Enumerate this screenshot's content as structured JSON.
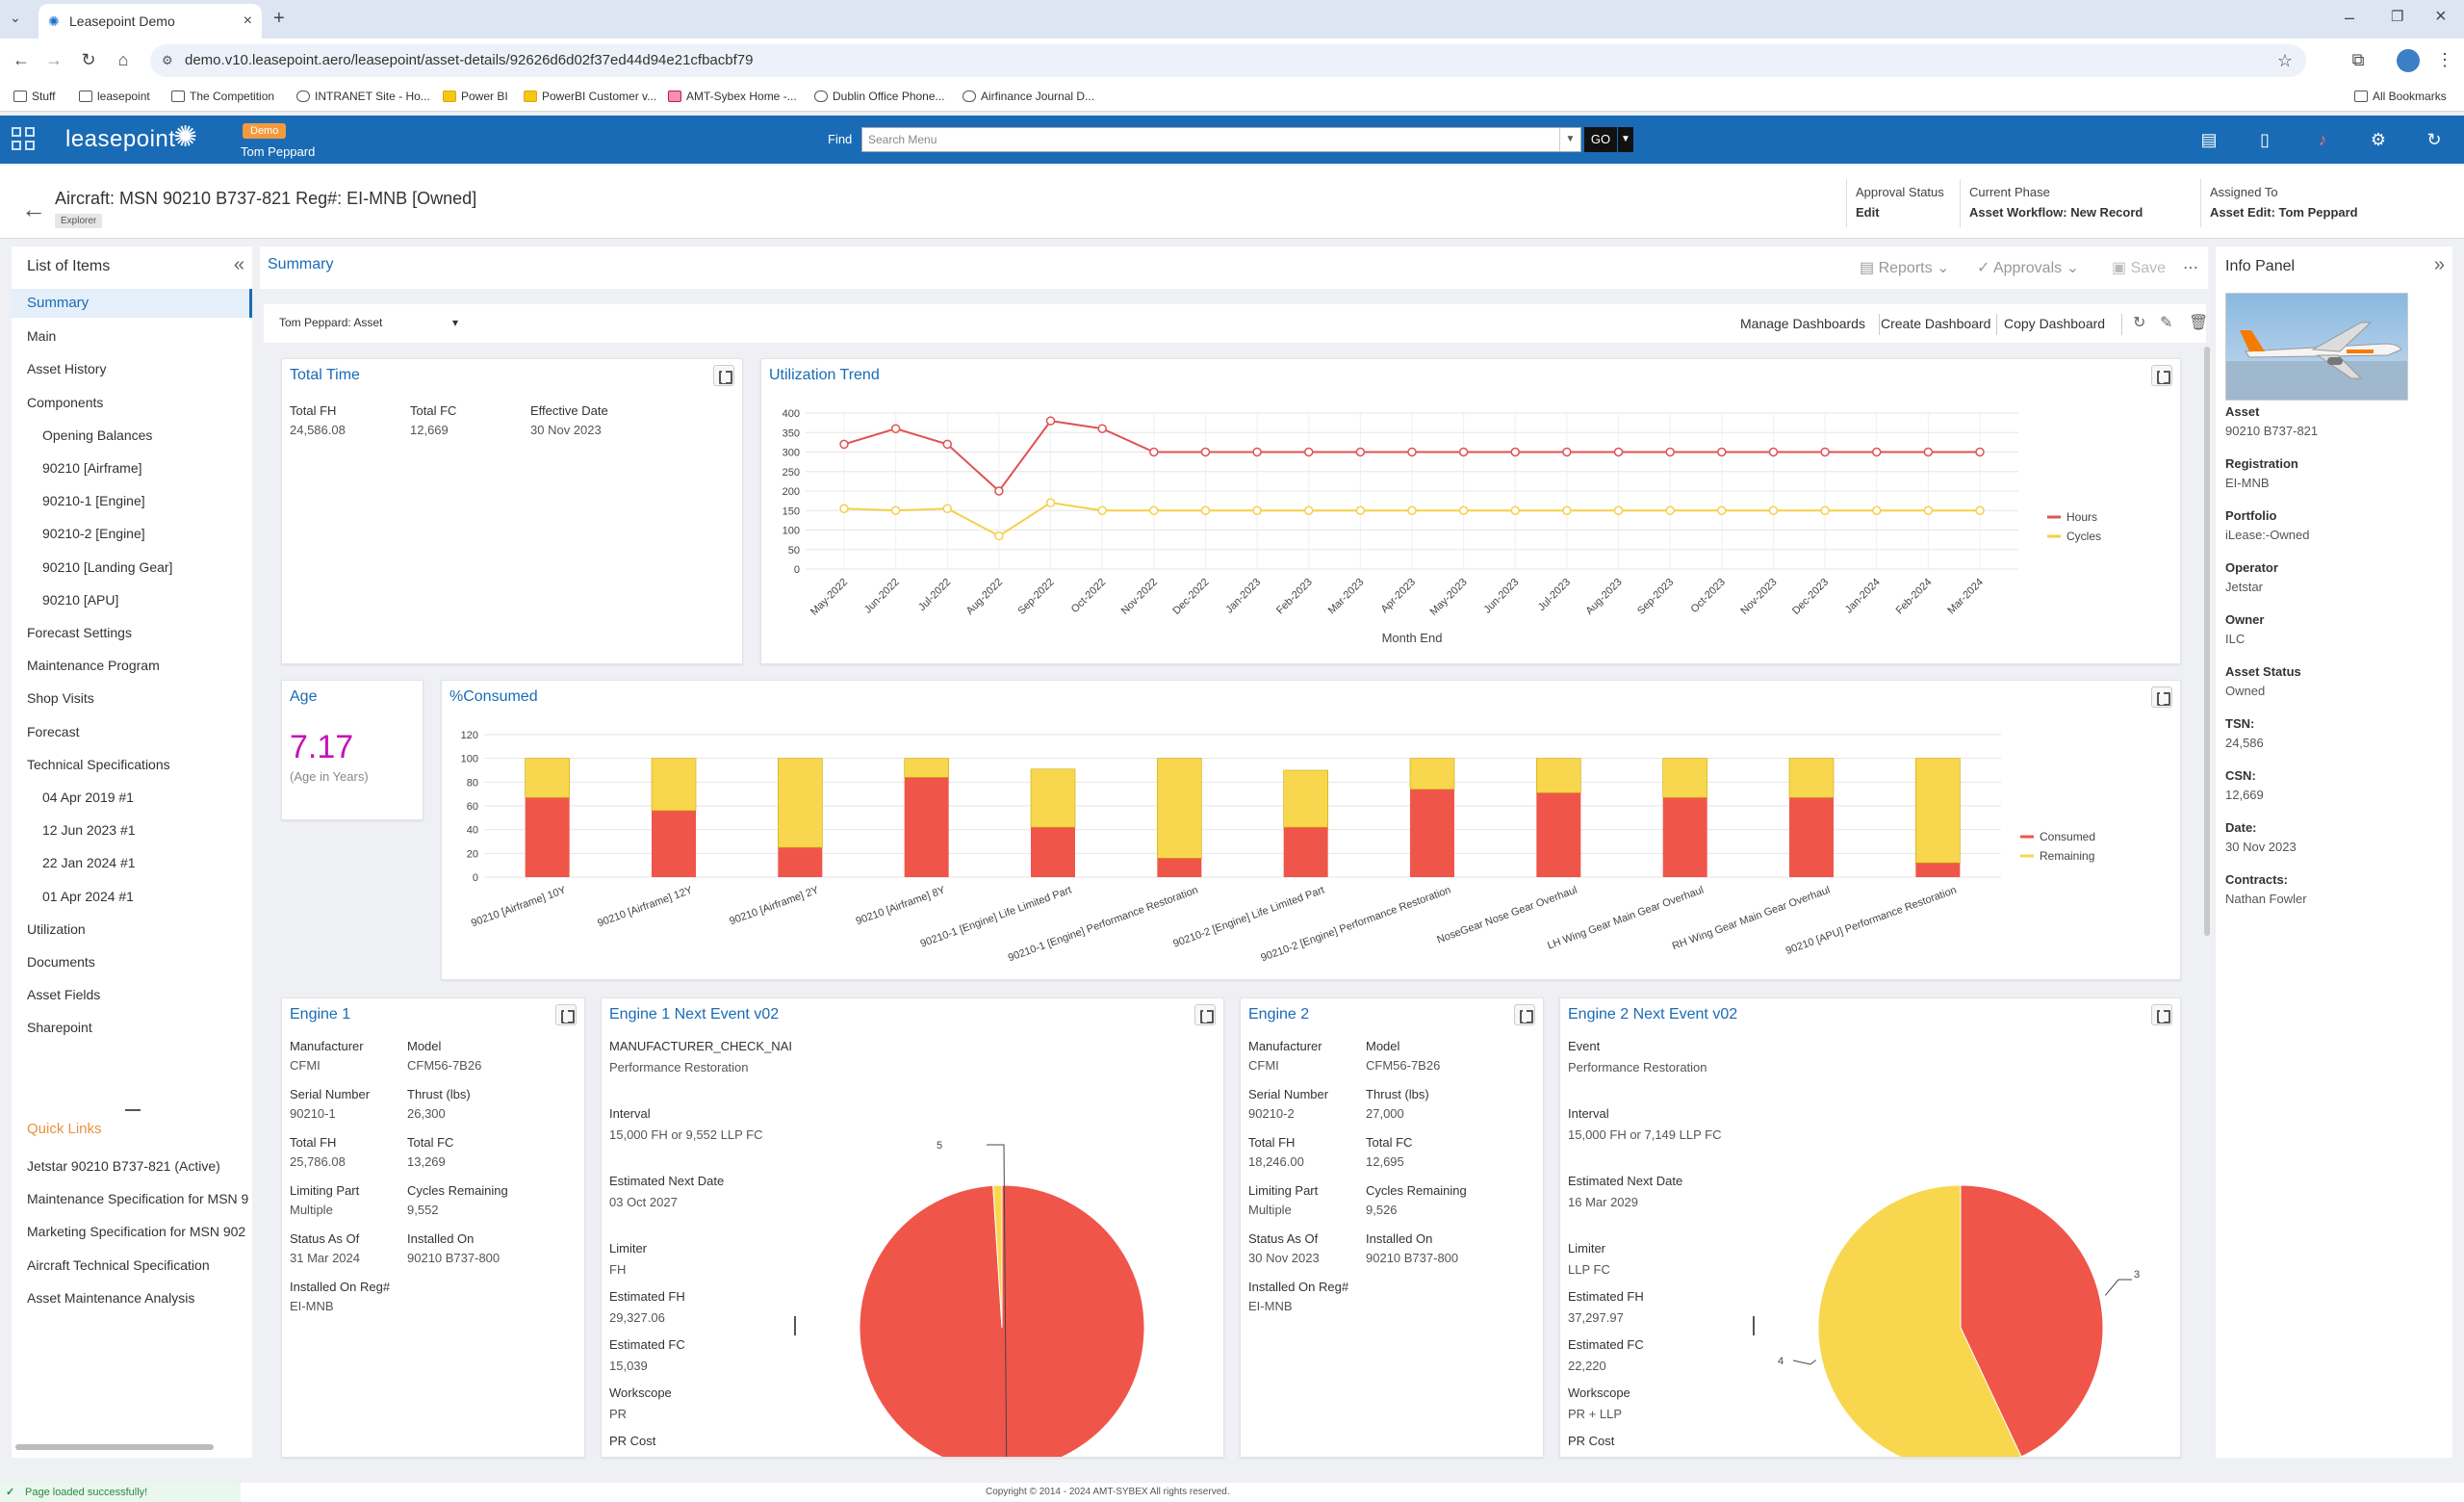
{
  "browser": {
    "tab_title": "Leasepoint Demo",
    "url": "demo.v10.leasepoint.aero/leasepoint/asset-details/92626d6d02f37ed44d94e21cfbacbf79",
    "bookmarks": [
      "Stuff",
      "leasepoint",
      "The Competition",
      "INTRANET Site - Ho...",
      "Power BI",
      "PowerBI Customer v...",
      "AMT-Sybex Home -...",
      "Dublin Office Phone...",
      "Airfinance Journal D..."
    ],
    "all_bookmarks": "All Bookmarks"
  },
  "app": {
    "logo": "leasepoint",
    "demo_badge": "Demo",
    "user": "Tom Peppard",
    "find_label": "Find",
    "search_placeholder": "Search Menu",
    "go_label": "GO"
  },
  "record": {
    "title": "Aircraft: MSN 90210 B737-821 Reg#: EI-MNB [Owned]",
    "badge": "Explorer",
    "approval_label": "Approval Status",
    "approval_value": "Edit",
    "phase_label": "Current Phase",
    "phase_value": "Asset Workflow: New Record",
    "assigned_label": "Assigned To",
    "assigned_value": "Asset Edit: Tom Peppard"
  },
  "left_nav": {
    "title": "List of Items",
    "items": [
      {
        "label": "Summary",
        "sub": false,
        "active": true
      },
      {
        "label": "Main",
        "sub": false
      },
      {
        "label": "Asset History",
        "sub": false
      },
      {
        "label": "Components",
        "sub": false
      },
      {
        "label": "Opening Balances",
        "sub": true
      },
      {
        "label": "90210 [Airframe]",
        "sub": true
      },
      {
        "label": "90210-1 [Engine]",
        "sub": true
      },
      {
        "label": "90210-2 [Engine]",
        "sub": true
      },
      {
        "label": "90210 [Landing Gear]",
        "sub": true
      },
      {
        "label": "90210 [APU]",
        "sub": true
      },
      {
        "label": "Forecast Settings",
        "sub": false
      },
      {
        "label": "Maintenance Program",
        "sub": false
      },
      {
        "label": "Shop Visits",
        "sub": false
      },
      {
        "label": "Forecast",
        "sub": false
      },
      {
        "label": "Technical Specifications",
        "sub": false
      },
      {
        "label": "04 Apr 2019 #1",
        "sub": true
      },
      {
        "label": "12 Jun 2023 #1",
        "sub": true
      },
      {
        "label": "22 Jan 2024 #1",
        "sub": true
      },
      {
        "label": "01 Apr 2024 #1",
        "sub": true
      },
      {
        "label": "Utilization",
        "sub": false
      },
      {
        "label": "Documents",
        "sub": false
      },
      {
        "label": "Asset Fields",
        "sub": false
      },
      {
        "label": "Sharepoint",
        "sub": false
      }
    ],
    "quick_links_title": "Quick Links",
    "quick_links": [
      "Jetstar 90210 B737-821 (Active)",
      "Maintenance Specification for MSN 9",
      "Marketing Specification for MSN 902",
      "Aircraft Technical Specification",
      "Asset Maintenance Analysis"
    ]
  },
  "main": {
    "title": "Summary",
    "reports": "Reports",
    "approvals": "Approvals",
    "save": "Save",
    "dashboard_select": "Tom Peppard: Asset",
    "manage": "Manage Dashboards",
    "create": "Create Dashboard",
    "copy": "Copy Dashboard"
  },
  "total_time": {
    "title": "Total Time",
    "fh_label": "Total FH",
    "fh_value": "24,586.08",
    "fc_label": "Total FC",
    "fc_value": "12,669",
    "date_label": "Effective Date",
    "date_value": "30 Nov 2023"
  },
  "age": {
    "title": "Age",
    "value": "7.17",
    "caption": "(Age in Years)"
  },
  "engine1": {
    "title": "Engine 1",
    "fields": [
      [
        "Manufacturer",
        "CFMI",
        "Model",
        "CFM56-7B26"
      ],
      [
        "Serial Number",
        "90210-1",
        "Thrust (lbs)",
        "26,300"
      ],
      [
        "Total FH",
        "25,786.08",
        "Total FC",
        "13,269"
      ],
      [
        "Limiting Part",
        "Multiple",
        "Cycles Remaining",
        "9,552"
      ],
      [
        "Status As Of",
        "31 Mar 2024",
        "Installed On",
        "90210 B737-800"
      ],
      [
        "Installed On Reg#",
        "EI-MNB",
        "",
        ""
      ]
    ]
  },
  "engine2": {
    "title": "Engine 2",
    "fields": [
      [
        "Manufacturer",
        "CFMI",
        "Model",
        "CFM56-7B26"
      ],
      [
        "Serial Number",
        "90210-2",
        "Thrust (lbs)",
        "27,000"
      ],
      [
        "Total FH",
        "18,246.00",
        "Total FC",
        "12,695"
      ],
      [
        "Limiting Part",
        "Multiple",
        "Cycles Remaining",
        "9,526"
      ],
      [
        "Status As Of",
        "30 Nov 2023",
        "Installed On",
        "90210 B737-800"
      ],
      [
        "Installed On Reg#",
        "EI-MNB",
        "",
        ""
      ]
    ]
  },
  "engine1_next": {
    "title": "Engine 1 Next Event v02",
    "fields": [
      [
        "MANUFACTURER_CHECK_NAI",
        "Performance Restoration"
      ],
      [
        "Interval",
        "15,000 FH or 9,552 LLP FC"
      ],
      [
        "Estimated Next Date",
        "03 Oct 2027"
      ],
      [
        "Limiter",
        "FH"
      ],
      [
        "Estimated FH",
        "29,327.06"
      ],
      [
        "Estimated FC",
        "15,039"
      ],
      [
        "Workscope",
        "PR"
      ],
      [
        "PR Cost",
        ""
      ]
    ]
  },
  "engine2_next": {
    "title": "Engine 2 Next Event v02",
    "fields": [
      [
        "Event",
        "Performance Restoration"
      ],
      [
        "Interval",
        "15,000 FH or 7,149 LLP FC"
      ],
      [
        "Estimated Next Date",
        "16 Mar 2029"
      ],
      [
        "Limiter",
        "LLP FC"
      ],
      [
        "Estimated FH",
        "37,297.97"
      ],
      [
        "Estimated FC",
        "22,220"
      ],
      [
        "Workscope",
        "PR + LLP"
      ],
      [
        "PR Cost",
        ""
      ]
    ]
  },
  "info_panel": {
    "title": "Info Panel",
    "fields": [
      [
        "Asset",
        "90210 B737-821"
      ],
      [
        "Registration",
        "EI-MNB"
      ],
      [
        "Portfolio",
        "iLease:-Owned"
      ],
      [
        "Operator",
        "Jetstar"
      ],
      [
        "Owner",
        "ILC"
      ],
      [
        "Asset Status",
        "Owned"
      ],
      [
        "TSN:",
        "24,586"
      ],
      [
        "CSN:",
        "12,669"
      ],
      [
        "Date:",
        "30 Nov 2023"
      ],
      [
        "Contracts:",
        "Nathan Fowler"
      ]
    ]
  },
  "status": {
    "message": "Page loaded successfully!",
    "copyright": "Copyright © 2014 - 2024 AMT-SYBEX All rights reserved."
  },
  "chart_data": [
    {
      "type": "line",
      "title": "Utilization Trend",
      "xlabel": "Month End",
      "ylim": [
        0,
        400
      ],
      "yticks": [
        0,
        50,
        100,
        150,
        200,
        250,
        300,
        350,
        400
      ],
      "categories": [
        "May-2022",
        "Jun-2022",
        "Jul-2022",
        "Aug-2022",
        "Sep-2022",
        "Oct-2022",
        "Nov-2022",
        "Dec-2022",
        "Jan-2023",
        "Feb-2023",
        "Mar-2023",
        "Apr-2023",
        "May-2023",
        "Jun-2023",
        "Jul-2023",
        "Aug-2023",
        "Sep-2023",
        "Oct-2023",
        "Nov-2023",
        "Dec-2023",
        "Jan-2024",
        "Feb-2024",
        "Mar-2024"
      ],
      "series": [
        {
          "name": "Hours",
          "color": "#e05252",
          "values": [
            320,
            360,
            320,
            200,
            380,
            360,
            300,
            300,
            300,
            300,
            300,
            300,
            300,
            300,
            300,
            300,
            300,
            300,
            300,
            300,
            300,
            300,
            300
          ]
        },
        {
          "name": "Cycles",
          "color": "#f5d04a",
          "values": [
            155,
            150,
            155,
            85,
            170,
            150,
            150,
            150,
            150,
            150,
            150,
            150,
            150,
            150,
            150,
            150,
            150,
            150,
            150,
            150,
            150,
            150,
            150
          ]
        }
      ],
      "legend": "right"
    },
    {
      "type": "bar",
      "title": "%Consumed",
      "stacked": true,
      "ylim": [
        0,
        120
      ],
      "yticks": [
        0,
        20,
        40,
        60,
        80,
        100,
        120
      ],
      "categories": [
        "90210 [Airframe] 10Y",
        "90210 [Airframe] 12Y",
        "90210 [Airframe] 2Y",
        "90210 [Airframe] 8Y",
        "90210-1 [Engine] Life Limited Part",
        "90210-1 [Engine] Performance Restoration",
        "90210-2 [Engine] Life Limited Part",
        "90210-2 [Engine] Performance Restoration",
        "NoseGear Nose Gear Overhaul",
        "LH Wing Gear Main Gear Overhaul",
        "RH Wing Gear Main Gear Overhaul",
        "90210 [APU] Performance Restoration"
      ],
      "series": [
        {
          "name": "Consumed",
          "color": "#f0554a",
          "values": [
            67,
            56,
            25,
            84,
            42,
            16,
            42,
            74,
            71,
            67,
            67,
            12
          ]
        },
        {
          "name": "Remaining",
          "color": "#f8d74f",
          "values": [
            33,
            44,
            75,
            16,
            49,
            84,
            48,
            26,
            29,
            33,
            33,
            88
          ]
        }
      ],
      "legend": "right"
    },
    {
      "type": "pie",
      "title": "Engine 1 Next Event v02",
      "slices": [
        {
          "label": "5",
          "value": 99,
          "color": "#f0554a"
        },
        {
          "label": "",
          "value": 1,
          "color": "#f8d74f"
        }
      ]
    },
    {
      "type": "pie",
      "title": "Engine 2 Next Event v02",
      "slices": [
        {
          "label": "3",
          "value": 43,
          "color": "#f0554a"
        },
        {
          "label": "4",
          "value": 57,
          "color": "#f8d74f"
        }
      ]
    }
  ]
}
